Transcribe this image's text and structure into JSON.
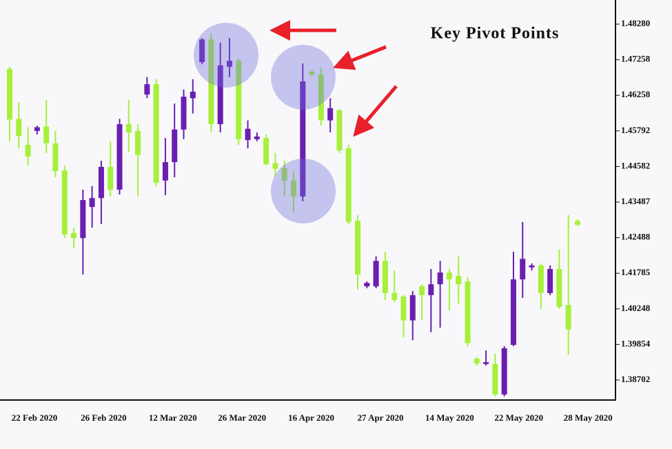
{
  "chart_data": {
    "type": "candlestick",
    "title": "Key Pivot Points",
    "up_color": "#6a1fb0",
    "down_color": "#a6f03a",
    "ylim": [
      1.3805,
      1.4897
    ],
    "yticks": [
      {
        "value": 1.4828,
        "label": "1.48280"
      },
      {
        "value": 1.47258,
        "label": "1.47258"
      },
      {
        "value": 1.46258,
        "label": "1.46258"
      },
      {
        "value": 1.45792,
        "label": "1.45792"
      },
      {
        "value": 1.44582,
        "label": "1.44582"
      },
      {
        "value": 1.43487,
        "label": "1.43487"
      },
      {
        "value": 1.42488,
        "label": "1.42488"
      },
      {
        "value": 1.41785,
        "label": "1.41785"
      },
      {
        "value": 1.40248,
        "label": "1.40248"
      },
      {
        "value": 1.39854,
        "label": "1.39854"
      },
      {
        "value": 1.38702,
        "label": "1.38702"
      }
    ],
    "x_labels": [
      "22 Feb 2020",
      "26 Feb 2020",
      "12 Mar 2020",
      "26 Mar 2020",
      "16 Apr 2020",
      "27 Apr 2020",
      "14 May 2020",
      "22 May 2020",
      "28 May 2020"
    ],
    "open": [
      1.47,
      1.4595,
      1.4532,
      1.4579,
      1.4585,
      1.4537,
      1.4446,
      1.4262,
      1.4248,
      1.4335,
      1.4361,
      1.4457,
      1.4387,
      1.4588,
      1.4579,
      1.4628,
      1.4657,
      1.4415,
      1.4473,
      1.4581,
      1.4622,
      1.4719,
      1.4784,
      1.4588,
      1.4706,
      1.4723,
      1.4548,
      1.4551,
      1.4555,
      1.4469,
      1.4453,
      1.4415,
      1.4366,
      1.4692,
      1.4684,
      1.4593,
      1.4606,
      1.452,
      1.4296,
      1.4122,
      1.4122,
      1.4203,
      1.4093,
      1.4078,
      1.4012,
      1.4122,
      1.4084,
      1.4131,
      1.418,
      1.4167,
      1.4143,
      1.3939,
      1.3922,
      1.3922,
      1.3823,
      1.3984,
      1.4152,
      1.419,
      1.4194,
      1.4093,
      1.4187,
      1.4042,
      1.4296
    ],
    "high": [
      1.4706,
      1.4617,
      1.4584,
      1.4586,
      1.462,
      1.4579,
      1.4462,
      1.4277,
      1.4387,
      1.4398,
      1.4478,
      1.4544,
      1.4595,
      1.462,
      1.4588,
      1.4677,
      1.4671,
      1.4555,
      1.4615,
      1.4642,
      1.4671,
      1.4788,
      1.4802,
      1.4775,
      1.4788,
      1.4729,
      1.4593,
      1.4574,
      1.4567,
      1.4504,
      1.4478,
      1.4444,
      1.4715,
      1.4696,
      1.4704,
      1.4622,
      1.4608,
      1.4532,
      1.4312,
      1.4143,
      1.4212,
      1.4221,
      1.4184,
      1.4084,
      1.4102,
      1.4131,
      1.4187,
      1.4203,
      1.4187,
      1.4212,
      1.4161,
      1.3944,
      1.3966,
      1.3955,
      1.398,
      1.4221,
      1.4293,
      1.4198,
      1.4198,
      1.4194,
      1.4225,
      1.4312,
      1.43
    ],
    "low": [
      1.4544,
      1.452,
      1.4462,
      1.4567,
      1.4504,
      1.4425,
      1.4248,
      1.4228,
      1.4173,
      1.4277,
      1.4287,
      1.4366,
      1.4372,
      1.4508,
      1.4366,
      1.4622,
      1.4398,
      1.437,
      1.4425,
      1.4551,
      1.4602,
      1.4713,
      1.4574,
      1.4574,
      1.4677,
      1.4532,
      1.452,
      1.4544,
      1.4462,
      1.4429,
      1.4366,
      1.432,
      1.4351,
      1.468,
      1.4586,
      1.4574,
      1.4504,
      1.4287,
      1.4108,
      1.4114,
      1.4114,
      1.4063,
      1.4054,
      1.3993,
      1.399,
      1.4012,
      1.3999,
      1.4004,
      1.4023,
      1.4048,
      1.398,
      1.3917,
      1.3917,
      1.3817,
      1.3817,
      1.398,
      1.4072,
      1.4184,
      1.4025,
      1.4084,
      1.4025,
      1.3951,
      1.4281
    ],
    "close": [
      1.4594,
      1.4562,
      1.4492,
      1.4584,
      1.4537,
      1.4444,
      1.4258,
      1.4248,
      1.4355,
      1.4361,
      1.4457,
      1.4387,
      1.4588,
      1.4574,
      1.4497,
      1.4657,
      1.4408,
      1.4473,
      1.4581,
      1.4624,
      1.4636,
      1.4784,
      1.4588,
      1.471,
      1.4723,
      1.4551,
      1.4582,
      1.456,
      1.4466,
      1.4451,
      1.4415,
      1.4366,
      1.4665,
      1.4684,
      1.4593,
      1.4609,
      1.4513,
      1.4293,
      1.4173,
      1.4137,
      1.4203,
      1.4093,
      1.4063,
      1.4012,
      1.4084,
      1.4084,
      1.4131,
      1.418,
      1.4152,
      1.4131,
      1.3987,
      1.3924,
      1.3928,
      1.3823,
      1.3973,
      1.4152,
      1.4207,
      1.4194,
      1.4093,
      1.4187,
      1.4033,
      1.4002,
      1.4285
    ]
  }
}
